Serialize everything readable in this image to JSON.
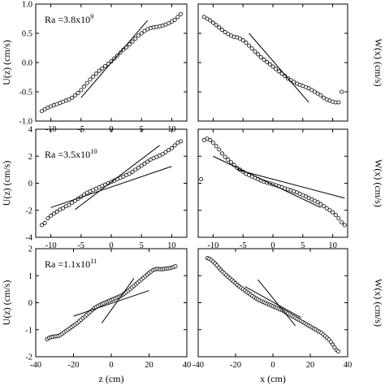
{
  "chart_data": [
    {
      "panel": "top-left",
      "type": "scatter",
      "annotation": {
        "base": "Ra =3.8x10",
        "exponent": "9"
      },
      "ylabel": "U(z) (cm/s)",
      "ylabel_side": "left",
      "xlabel": "",
      "xlim": [
        -12.5,
        12.5
      ],
      "ylim": [
        -1.0,
        1.0
      ],
      "xticks": [
        -10,
        -5,
        0,
        5,
        10
      ],
      "yticks": [
        -1.0,
        -0.5,
        0.0,
        0.5,
        1.0
      ],
      "xtick_labels": [
        "-10",
        "-5",
        "0",
        "5",
        "10"
      ],
      "ytick_labels": [
        "-1.0",
        "-0.5",
        "0.0",
        "0.5",
        "1.0"
      ],
      "series": [
        {
          "style": "open-circles",
          "x": [
            -11.5,
            -11,
            -10.5,
            -10,
            -9.5,
            -9,
            -8.5,
            -8,
            -7.5,
            -7,
            -6.5,
            -6,
            -5.5,
            -5,
            -4.5,
            -4,
            -3.5,
            -3,
            -2.5,
            -2,
            -1.5,
            -1,
            -0.5,
            0,
            0.5,
            1,
            1.5,
            2,
            2.5,
            3,
            3.5,
            4,
            4.5,
            5,
            5.5,
            6,
            6.5,
            7,
            7.5,
            8,
            8.5,
            9,
            9.5,
            10,
            10.5,
            11,
            11.5
          ],
          "y": [
            -0.83,
            -0.8,
            -0.77,
            -0.75,
            -0.73,
            -0.71,
            -0.69,
            -0.67,
            -0.65,
            -0.63,
            -0.6,
            -0.56,
            -0.52,
            -0.47,
            -0.41,
            -0.35,
            -0.29,
            -0.24,
            -0.19,
            -0.14,
            -0.1,
            -0.06,
            -0.02,
            0.02,
            0.07,
            0.12,
            0.17,
            0.22,
            0.26,
            0.31,
            0.36,
            0.41,
            0.46,
            0.5,
            0.54,
            0.57,
            0.59,
            0.6,
            0.61,
            0.62,
            0.63,
            0.65,
            0.67,
            0.7,
            0.73,
            0.78,
            0.83
          ]
        },
        {
          "style": "line",
          "x": [
            -5.0,
            6.0
          ],
          "y": [
            -0.6,
            0.72
          ]
        }
      ]
    },
    {
      "panel": "top-right",
      "type": "scatter",
      "ylabel": "W(x) (cm/s)",
      "ylabel_side": "right",
      "xlabel": "",
      "xlim": [
        -12.5,
        12.5
      ],
      "ylim": [
        -1.0,
        1.0
      ],
      "xticks": [
        -10,
        -5,
        0,
        5,
        10
      ],
      "yticks": [
        -1.0,
        -0.5,
        0.0,
        0.5,
        1.0
      ],
      "xtick_labels": [],
      "ytick_labels": [],
      "series": [
        {
          "style": "open-circles",
          "x": [
            -11.5,
            -11,
            -10.5,
            -10,
            -9.5,
            -9,
            -8.5,
            -8,
            -7.5,
            -7,
            -6.5,
            -6,
            -5.5,
            -5,
            -4.5,
            -4,
            -3.5,
            -3,
            -2.5,
            -2,
            -1.5,
            -1,
            -0.5,
            0,
            0.5,
            1,
            1.5,
            2,
            2.5,
            3,
            3.5,
            4,
            4.5,
            5,
            5.5,
            6,
            6.5,
            7,
            7.5,
            8,
            8.5,
            9,
            9.5,
            10,
            10.5,
            11,
            11.5
          ],
          "y": [
            0.78,
            0.75,
            0.72,
            0.68,
            0.64,
            0.6,
            0.56,
            0.52,
            0.49,
            0.46,
            0.44,
            0.43,
            0.41,
            0.38,
            0.34,
            0.29,
            0.24,
            0.19,
            0.14,
            0.09,
            0.05,
            0.01,
            -0.03,
            -0.07,
            -0.11,
            -0.15,
            -0.19,
            -0.23,
            -0.27,
            -0.3,
            -0.33,
            -0.36,
            -0.38,
            -0.4,
            -0.42,
            -0.44,
            -0.47,
            -0.5,
            -0.53,
            -0.56,
            -0.6,
            -0.63,
            -0.65,
            -0.67,
            -0.68,
            -0.68,
            -0.5
          ]
        },
        {
          "style": "line",
          "x": [
            -4.0,
            6.0
          ],
          "y": [
            0.5,
            -0.68
          ]
        }
      ]
    },
    {
      "panel": "middle-left",
      "type": "scatter",
      "annotation": {
        "base": "Ra =3.5x10",
        "exponent": "10"
      },
      "ylabel": "U(z) (cm/s)",
      "ylabel_side": "left",
      "xlabel": "",
      "xlim": [
        -12.5,
        12.5
      ],
      "ylim": [
        -4,
        4
      ],
      "xticks": [
        -10,
        -5,
        0,
        5,
        10
      ],
      "yticks": [
        -4,
        -2,
        0,
        2,
        4
      ],
      "xtick_labels": [
        "-10",
        "-5",
        "0",
        "5",
        "10"
      ],
      "ytick_labels": [
        "-4",
        "-2",
        "0",
        "2",
        "4"
      ],
      "series": [
        {
          "style": "open-circles",
          "x": [
            -11.5,
            -11,
            -10.5,
            -10,
            -9.5,
            -9,
            -8.5,
            -8,
            -7.5,
            -7,
            -6.5,
            -6,
            -5.5,
            -5,
            -4.5,
            -4,
            -3.5,
            -3,
            -2.5,
            -2,
            -1.5,
            -1,
            -0.5,
            0,
            0.5,
            1,
            1.5,
            2,
            2.5,
            3,
            3.5,
            4,
            4.5,
            5,
            5.5,
            6,
            6.5,
            7,
            7.5,
            8,
            8.5,
            9,
            9.5,
            10,
            10.5,
            11,
            11.5
          ],
          "y": [
            -3.1,
            -2.95,
            -2.6,
            -2.4,
            -2.25,
            -2.1,
            -1.95,
            -1.85,
            -1.7,
            -1.6,
            -1.45,
            -1.3,
            -1.15,
            -1.0,
            -0.85,
            -0.7,
            -0.6,
            -0.5,
            -0.4,
            -0.3,
            -0.2,
            -0.1,
            0.0,
            0.1,
            0.2,
            0.3,
            0.4,
            0.5,
            0.6,
            0.7,
            0.85,
            1.0,
            1.15,
            1.3,
            1.45,
            1.6,
            1.75,
            1.85,
            1.95,
            2.05,
            2.15,
            2.3,
            2.45,
            2.6,
            2.8,
            3.0,
            3.1
          ]
        },
        {
          "style": "line",
          "x": [
            -10.0,
            10.0
          ],
          "y": [
            -1.8,
            1.25
          ]
        },
        {
          "style": "line",
          "x": [
            -6.0,
            8.0
          ],
          "y": [
            -1.95,
            2.8
          ]
        }
      ]
    },
    {
      "panel": "middle-right",
      "type": "scatter",
      "ylabel": "W(x) (cm/s)",
      "ylabel_side": "right",
      "xlabel": "",
      "xlim": [
        -12.5,
        12.5
      ],
      "ylim": [
        -4,
        4
      ],
      "xticks": [
        -10,
        -5,
        0,
        5,
        10
      ],
      "yticks": [
        -4,
        -2,
        0,
        2,
        4
      ],
      "xtick_labels": [
        "-10",
        "-5",
        "0",
        "5",
        "10"
      ],
      "ytick_labels": [],
      "series": [
        {
          "style": "open-circles",
          "x": [
            -12,
            -11.5,
            -11,
            -10.5,
            -10,
            -9.5,
            -9,
            -8.5,
            -8,
            -7.5,
            -7,
            -6.5,
            -6,
            -5.5,
            -5,
            -4.5,
            -4,
            -3.5,
            -3,
            -2.5,
            -2,
            -1.5,
            -1,
            -0.5,
            0,
            0.5,
            1,
            1.5,
            2,
            2.5,
            3,
            3.5,
            4,
            4.5,
            5,
            5.5,
            6,
            6.5,
            7,
            7.5,
            8,
            8.5,
            9,
            9.5,
            10,
            10.5,
            11,
            11.5,
            12
          ],
          "y": [
            0.3,
            3.2,
            3.3,
            3.2,
            3.0,
            2.75,
            2.5,
            2.2,
            1.95,
            1.75,
            1.55,
            1.35,
            1.15,
            1.0,
            0.85,
            0.7,
            0.6,
            0.5,
            0.4,
            0.3,
            0.2,
            0.12,
            0.05,
            -0.02,
            -0.08,
            -0.15,
            -0.22,
            -0.3,
            -0.38,
            -0.45,
            -0.52,
            -0.6,
            -0.68,
            -0.78,
            -0.88,
            -0.98,
            -1.1,
            -1.2,
            -1.3,
            -1.4,
            -1.55,
            -1.7,
            -1.85,
            -2.0,
            -2.15,
            -2.35,
            -2.6,
            -2.9,
            -3.1
          ]
        },
        {
          "style": "line",
          "x": [
            -10.0,
            8.0
          ],
          "y": [
            2.0,
            -1.8
          ]
        },
        {
          "style": "line",
          "x": [
            -6.0,
            12.0
          ],
          "y": [
            1.0,
            -1.1
          ]
        }
      ]
    },
    {
      "panel": "bottom-left",
      "type": "scatter",
      "annotation": {
        "base": "Ra =1.1x10",
        "exponent": "11"
      },
      "ylabel": "U(z) (cm/s)",
      "ylabel_side": "left",
      "xlabel": "z (cm)",
      "xlim": [
        -40,
        40
      ],
      "ylim": [
        -2,
        2
      ],
      "xticks": [
        -40,
        -20,
        0,
        20,
        40
      ],
      "yticks": [
        -2,
        -1,
        0,
        1,
        2
      ],
      "xtick_labels": [
        "-40",
        "-20",
        "0",
        "20",
        "40"
      ],
      "ytick_labels": [
        "-2",
        "-1",
        "0",
        "1",
        "2"
      ],
      "series": [
        {
          "style": "open-circles",
          "x": [
            -34,
            -33,
            -32,
            -31,
            -30,
            -29,
            -28,
            -27,
            -26,
            -25,
            -24,
            -23,
            -22,
            -21,
            -20,
            -19,
            -18,
            -17,
            -16,
            -15,
            -14,
            -13,
            -12,
            -11,
            -10,
            -9,
            -8,
            -7,
            -6,
            -5,
            -4,
            -3,
            -2,
            -1,
            0,
            1,
            2,
            3,
            4,
            5,
            6,
            7,
            8,
            9,
            10,
            11,
            12,
            13,
            14,
            15,
            16,
            17,
            18,
            19,
            20,
            21,
            22,
            23,
            24,
            25,
            26,
            27,
            28,
            29,
            30,
            31,
            32,
            33,
            34
          ],
          "y": [
            -1.35,
            -1.3,
            -1.28,
            -1.26,
            -1.25,
            -1.24,
            -1.23,
            -1.2,
            -1.15,
            -1.1,
            -1.05,
            -1.0,
            -0.95,
            -0.9,
            -0.85,
            -0.8,
            -0.75,
            -0.69,
            -0.63,
            -0.57,
            -0.51,
            -0.45,
            -0.39,
            -0.33,
            -0.27,
            -0.21,
            -0.16,
            -0.12,
            -0.08,
            -0.05,
            -0.02,
            0.01,
            0.04,
            0.07,
            0.1,
            0.13,
            0.16,
            0.19,
            0.22,
            0.25,
            0.29,
            0.34,
            0.39,
            0.44,
            0.5,
            0.56,
            0.62,
            0.68,
            0.74,
            0.8,
            0.86,
            0.92,
            0.98,
            1.04,
            1.1,
            1.15,
            1.2,
            1.23,
            1.25,
            1.25,
            1.24,
            1.24,
            1.25,
            1.26,
            1.27,
            1.28,
            1.3,
            1.32,
            1.35
          ]
        },
        {
          "style": "line",
          "x": [
            -20.0,
            20.0
          ],
          "y": [
            -0.5,
            0.45
          ]
        },
        {
          "style": "line",
          "x": [
            -5.0,
            12.0
          ],
          "y": [
            -0.75,
            0.9
          ]
        }
      ]
    },
    {
      "panel": "bottom-right",
      "type": "scatter",
      "ylabel": "W(x) (cm/s)",
      "ylabel_side": "right",
      "xlabel": "x (cm)",
      "xlim": [
        -40,
        40
      ],
      "ylim": [
        -2,
        2
      ],
      "xticks": [
        -40,
        -20,
        0,
        20,
        40
      ],
      "yticks": [
        -2,
        -1,
        0,
        1,
        2
      ],
      "xtick_labels": [
        "-40",
        "-20",
        "0",
        "20",
        "40"
      ],
      "ytick_labels": [],
      "series": [
        {
          "style": "open-circles",
          "x": [
            -35,
            -34,
            -33,
            -32,
            -31,
            -30,
            -29,
            -28,
            -27,
            -26,
            -25,
            -24,
            -23,
            -22,
            -21,
            -20,
            -19,
            -18,
            -17,
            -16,
            -15,
            -14,
            -13,
            -12,
            -11,
            -10,
            -9,
            -8,
            -7,
            -6,
            -5,
            -4,
            -3,
            -2,
            -1,
            0,
            1,
            2,
            3,
            4,
            5,
            6,
            7,
            8,
            9,
            10,
            11,
            12,
            13,
            14,
            15,
            16,
            17,
            18,
            19,
            20,
            21,
            22,
            23,
            24,
            25,
            26,
            27,
            28,
            29,
            30,
            31,
            32,
            33,
            34,
            35
          ],
          "y": [
            1.65,
            1.62,
            1.58,
            1.52,
            1.45,
            1.38,
            1.3,
            1.22,
            1.15,
            1.08,
            1.02,
            0.96,
            0.9,
            0.84,
            0.78,
            0.72,
            0.66,
            0.6,
            0.55,
            0.5,
            0.45,
            0.4,
            0.35,
            0.3,
            0.25,
            0.2,
            0.16,
            0.12,
            0.08,
            0.05,
            0.02,
            -0.01,
            -0.04,
            -0.07,
            -0.1,
            -0.13,
            -0.16,
            -0.19,
            -0.22,
            -0.25,
            -0.28,
            -0.32,
            -0.36,
            -0.4,
            -0.44,
            -0.48,
            -0.52,
            -0.56,
            -0.6,
            -0.64,
            -0.68,
            -0.72,
            -0.76,
            -0.8,
            -0.84,
            -0.88,
            -0.92,
            -0.96,
            -1.0,
            -1.04,
            -1.08,
            -1.12,
            -1.18,
            -1.24,
            -1.3,
            -1.36,
            -1.45,
            -1.55,
            -1.65,
            -1.75,
            -1.8
          ]
        },
        {
          "style": "line",
          "x": [
            -15.0,
            15.0
          ],
          "y": [
            0.6,
            -0.55
          ]
        },
        {
          "style": "line",
          "x": [
            -8.0,
            12.0
          ],
          "y": [
            0.85,
            -0.85
          ]
        }
      ]
    }
  ]
}
